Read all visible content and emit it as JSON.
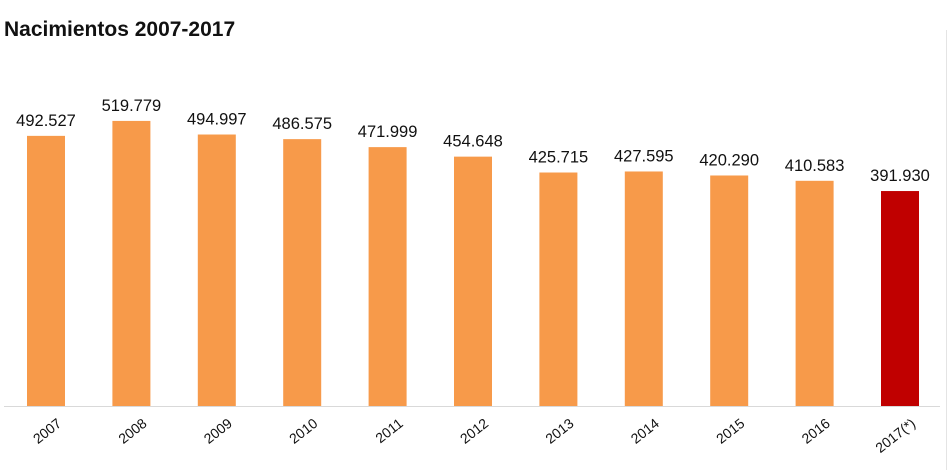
{
  "chart_data": {
    "type": "bar",
    "title": "Nacimientos 2007-2017",
    "categories": [
      "2007",
      "2008",
      "2009",
      "2010",
      "2011",
      "2012",
      "2013",
      "2014",
      "2015",
      "2016",
      "2017(*)"
    ],
    "values": [
      492527,
      519779,
      494997,
      486575,
      471999,
      454648,
      425715,
      427595,
      420290,
      410583,
      391930
    ],
    "data_labels": [
      "492.527",
      "519.779",
      "494.997",
      "486.575",
      "471.999",
      "454.648",
      "425.715",
      "427.595",
      "420.290",
      "410.583",
      "391.930"
    ],
    "ylim": [
      0,
      520000
    ],
    "grid": false,
    "legend": "none",
    "colors": {
      "default": "#F79A4A",
      "highlight": "#C00000",
      "baseline": "#D9D9D9"
    },
    "highlight_index": 10
  }
}
